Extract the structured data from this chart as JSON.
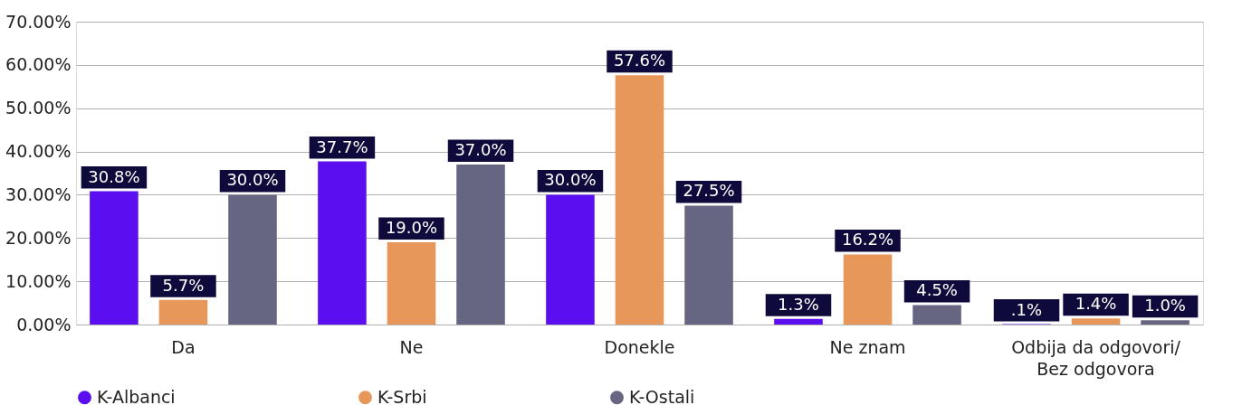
{
  "chart_data": {
    "type": "bar",
    "categories": [
      "Da",
      "Ne",
      "Donekle",
      "Ne znam",
      "Odbija da odgovori/ Bez odgovora"
    ],
    "series": [
      {
        "name": "K-Albanci",
        "color": "#5b0ff0",
        "values": [
          30.8,
          37.7,
          30.0,
          1.3,
          0.1
        ],
        "value_labels": [
          "30.8%",
          "37.7%",
          "30.0%",
          "1.3%",
          ".1%"
        ]
      },
      {
        "name": "K-Srbi",
        "color": "#e8975a",
        "values": [
          5.7,
          19.0,
          57.6,
          16.2,
          1.4
        ],
        "value_labels": [
          "5.7%",
          "19.0%",
          "57.6%",
          "16.2%",
          "1.4%"
        ]
      },
      {
        "name": "K-Ostali",
        "color": "#676682",
        "values": [
          30.0,
          37.0,
          27.5,
          4.5,
          1.0
        ],
        "value_labels": [
          "30.0%",
          "37.0%",
          "27.5%",
          "4.5%",
          "1.0%"
        ]
      }
    ],
    "ylim": [
      0,
      70
    ],
    "yticks": [
      {
        "value": 0,
        "label": "0.00%"
      },
      {
        "value": 10,
        "label": "10.00%"
      },
      {
        "value": 20,
        "label": "20.00%"
      },
      {
        "value": 30,
        "label": "30.00%"
      },
      {
        "value": 40,
        "label": "40.00%"
      },
      {
        "value": 50,
        "label": "50.00%"
      },
      {
        "value": 60,
        "label": "60.00%"
      },
      {
        "value": 70,
        "label": "70.00%"
      }
    ],
    "grid": "y",
    "legend": "bottom"
  }
}
